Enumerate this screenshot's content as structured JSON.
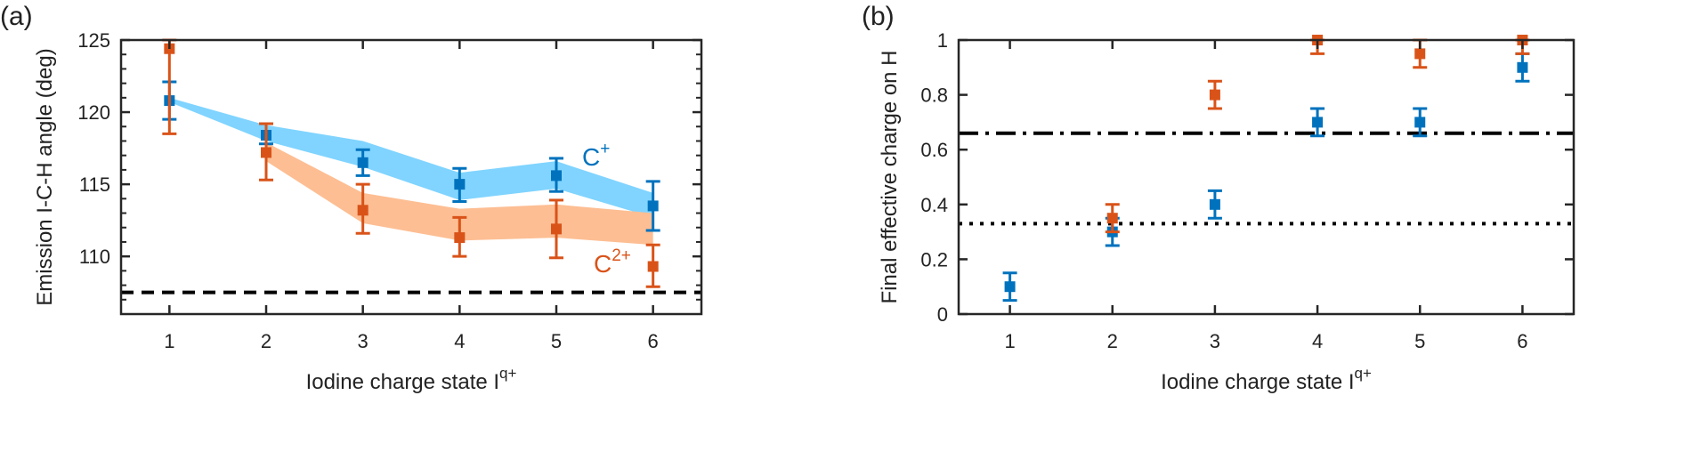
{
  "chart_data": [
    {
      "panel_label": "(a)",
      "type": "line",
      "xlabel": "Iodine charge state I",
      "xlabel_sup": "q+",
      "ylabel": "Emission I-C-H angle (deg)",
      "xlim": [
        0.5,
        6.5
      ],
      "ylim": [
        106,
        125
      ],
      "xticks": [
        1,
        2,
        3,
        4,
        5,
        6
      ],
      "yticks": [
        110,
        115,
        120,
        125
      ],
      "grid": false,
      "reference_lines": [
        {
          "y": 107.5,
          "style": "dashed",
          "color": "#000000"
        }
      ],
      "series": [
        {
          "name": "C",
          "name_sup": "+",
          "color": "#0072BD",
          "band_color": "#80D4FF",
          "x": [
            1,
            2,
            3,
            4,
            5,
            6
          ],
          "y": [
            120.8,
            118.4,
            116.5,
            115.0,
            115.6,
            113.5
          ],
          "err_low": [
            119.5,
            117.8,
            115.6,
            113.8,
            114.5,
            111.8
          ],
          "err_high": [
            122.1,
            119.2,
            117.4,
            116.1,
            116.8,
            115.2
          ],
          "band_x": [
            1,
            2,
            3,
            4,
            5,
            6
          ],
          "band_upper": [
            121.0,
            119.1,
            118.0,
            115.8,
            116.6,
            114.4
          ],
          "band_lower": [
            120.7,
            118.0,
            116.2,
            113.9,
            114.7,
            112.7
          ]
        },
        {
          "name": "C",
          "name_sup": "2+",
          "color": "#D95319",
          "band_color": "#FDBE93",
          "x": [
            1,
            2,
            3,
            4,
            5,
            6
          ],
          "y": [
            124.4,
            117.2,
            113.2,
            111.3,
            111.9,
            109.3
          ],
          "err_low": [
            118.5,
            115.3,
            111.6,
            110.0,
            109.9,
            107.9
          ],
          "err_high": [
            125.0,
            119.2,
            115.0,
            112.7,
            113.9,
            110.8
          ],
          "band_x": [
            2,
            3,
            4,
            5,
            6
          ],
          "band_upper": [
            117.9,
            114.4,
            113.3,
            113.6,
            113.0
          ],
          "band_lower": [
            116.6,
            112.3,
            111.1,
            111.3,
            110.8
          ]
        }
      ]
    },
    {
      "panel_label": "(b)",
      "type": "scatter",
      "xlabel": "Iodine charge state I",
      "xlabel_sup": "q+",
      "ylabel": "Final effective charge on H",
      "xlim": [
        0.5,
        6.5
      ],
      "ylim": [
        0,
        1
      ],
      "xticks": [
        1,
        2,
        3,
        4,
        5,
        6
      ],
      "yticks": [
        0,
        0.2,
        0.4,
        0.6,
        0.8,
        1
      ],
      "grid": false,
      "reference_lines": [
        {
          "y": 0.66,
          "style": "dashdot",
          "color": "#000000"
        },
        {
          "y": 0.33,
          "style": "dotted",
          "color": "#000000"
        }
      ],
      "series": [
        {
          "color": "#0072BD",
          "x": [
            1,
            2,
            3,
            4,
            5,
            6
          ],
          "y": [
            0.1,
            0.3,
            0.4,
            0.7,
            0.7,
            0.9
          ],
          "err_low": [
            0.05,
            0.25,
            0.35,
            0.65,
            0.65,
            0.85
          ],
          "err_high": [
            0.15,
            0.35,
            0.45,
            0.75,
            0.75,
            0.95
          ]
        },
        {
          "color": "#D95319",
          "x": [
            2,
            3,
            4,
            5,
            6
          ],
          "y": [
            0.35,
            0.8,
            1.0,
            0.95,
            1.0
          ],
          "err_low": [
            0.3,
            0.75,
            0.95,
            0.9,
            0.95
          ],
          "err_high": [
            0.4,
            0.85,
            1.0,
            1.0,
            1.0
          ]
        }
      ]
    }
  ]
}
